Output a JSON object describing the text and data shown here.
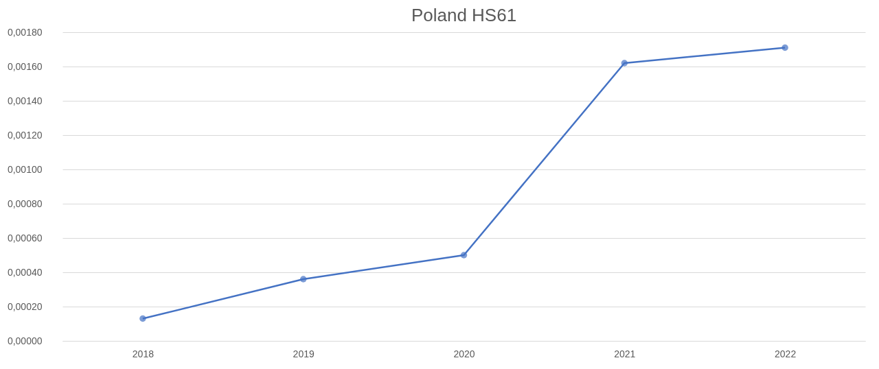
{
  "chart_data": {
    "type": "line",
    "title": "Poland HS61",
    "categories": [
      "2018",
      "2019",
      "2020",
      "2021",
      "2022"
    ],
    "series": [
      {
        "color": "#4472c4",
        "values": [
          0.00013,
          0.00036,
          0.0005,
          0.00162,
          0.00171
        ]
      }
    ],
    "ylim": [
      0,
      0.0018
    ],
    "yticks": [
      {
        "value": 0,
        "label": "0,00000"
      },
      {
        "value": 0.0002,
        "label": "0,00020"
      },
      {
        "value": 0.0004,
        "label": "0,00040"
      },
      {
        "value": 0.0006,
        "label": "0,00060"
      },
      {
        "value": 0.0008,
        "label": "0,00080"
      },
      {
        "value": 0.001,
        "label": "0,00100"
      },
      {
        "value": 0.0012,
        "label": "0,00120"
      },
      {
        "value": 0.0014,
        "label": "0,00140"
      },
      {
        "value": 0.0016,
        "label": "0,00160"
      },
      {
        "value": 0.0018,
        "label": "0,00180"
      }
    ],
    "grid": "y",
    "marker": "circle",
    "line_style": "solid"
  }
}
